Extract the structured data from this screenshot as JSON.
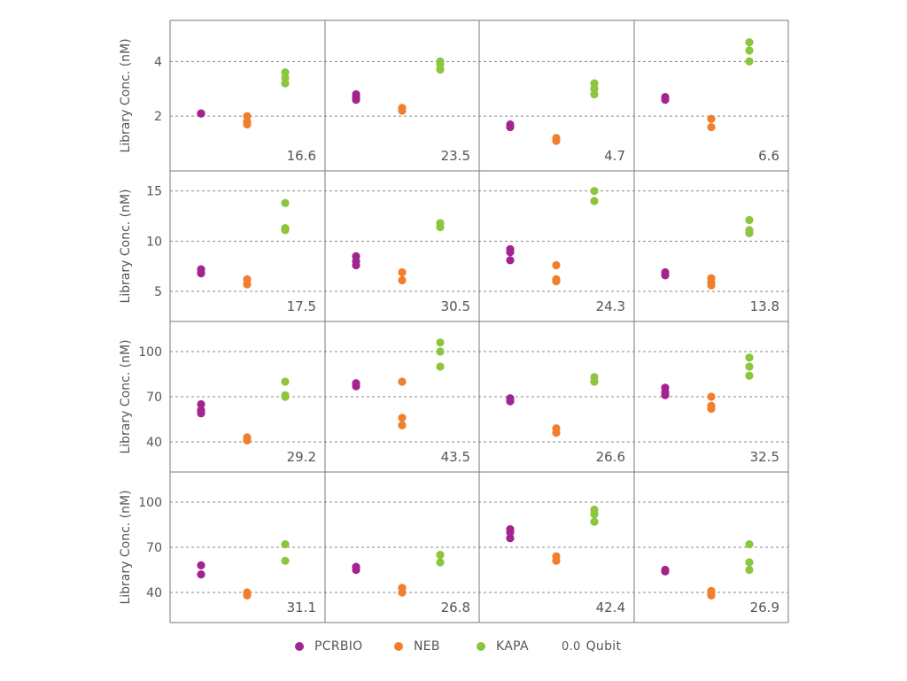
{
  "colors": {
    "PCRBIO": "#a3238f",
    "NEB": "#f07f2d",
    "KAPA": "#8cc63f",
    "gridline": "#8a8a8a",
    "border": "#7a7a7a",
    "text": "#555555"
  },
  "legend": {
    "items": [
      "PCRBIO",
      "NEB",
      "KAPA"
    ],
    "qubit_sample": "0.0",
    "qubit_label": "Qubit"
  },
  "chart_data": {
    "type": "scatter",
    "layout": "4x4 grid of panels, rows share y-axis",
    "ylabel": "Library Conc. (nM)",
    "series_names": [
      "PCRBIO",
      "NEB",
      "KAPA"
    ],
    "grid": "horizontal dashed",
    "legend_position": "bottom",
    "rows": [
      {
        "ylim": [
          0,
          5.5
        ],
        "yticks": [
          2,
          4
        ],
        "panels": [
          {
            "qubit": "16.6",
            "PCRBIO": [
              2.1,
              2.1
            ],
            "NEB": [
              1.7,
              1.8,
              2.0
            ],
            "KAPA": [
              3.2,
              3.4,
              3.6
            ]
          },
          {
            "qubit": "23.5",
            "PCRBIO": [
              2.6,
              2.7,
              2.8
            ],
            "NEB": [
              2.2,
              2.3
            ],
            "KAPA": [
              3.7,
              3.9,
              4.0
            ]
          },
          {
            "qubit": "4.7",
            "PCRBIO": [
              1.6,
              1.7
            ],
            "NEB": [
              1.1,
              1.2
            ],
            "KAPA": [
              2.8,
              3.0,
              3.2
            ]
          },
          {
            "qubit": "6.6",
            "PCRBIO": [
              2.6,
              2.7
            ],
            "NEB": [
              1.6,
              1.9
            ],
            "KAPA": [
              4.0,
              4.4,
              4.7
            ]
          }
        ]
      },
      {
        "ylim": [
          2,
          17
        ],
        "yticks": [
          5,
          10,
          15
        ],
        "panels": [
          {
            "qubit": "17.5",
            "PCRBIO": [
              6.8,
              7.2
            ],
            "NEB": [
              5.7,
              6.2
            ],
            "KAPA": [
              11.1,
              11.3,
              13.8
            ]
          },
          {
            "qubit": "30.5",
            "PCRBIO": [
              7.6,
              8.0,
              8.5
            ],
            "NEB": [
              6.1,
              6.9
            ],
            "KAPA": [
              11.4,
              11.8
            ]
          },
          {
            "qubit": "24.3",
            "PCRBIO": [
              8.1,
              8.9,
              9.2
            ],
            "NEB": [
              6.0,
              6.2,
              7.6
            ],
            "KAPA": [
              14.0,
              15.0
            ]
          },
          {
            "qubit": "13.8",
            "PCRBIO": [
              6.6,
              6.9
            ],
            "NEB": [
              5.6,
              5.9,
              6.3
            ],
            "KAPA": [
              10.8,
              11.1,
              12.1
            ]
          }
        ]
      },
      {
        "ylim": [
          20,
          120
        ],
        "yticks": [
          40,
          70,
          100
        ],
        "panels": [
          {
            "qubit": "29.2",
            "PCRBIO": [
              59,
              61,
              65
            ],
            "NEB": [
              41,
              43
            ],
            "KAPA": [
              70,
              71,
              80
            ]
          },
          {
            "qubit": "43.5",
            "PCRBIO": [
              77,
              79
            ],
            "NEB": [
              51,
              56,
              80
            ],
            "KAPA": [
              90,
              100,
              106
            ]
          },
          {
            "qubit": "26.6",
            "PCRBIO": [
              67,
              69
            ],
            "NEB": [
              46,
              49
            ],
            "KAPA": [
              80,
              83
            ]
          },
          {
            "qubit": "32.5",
            "PCRBIO": [
              71,
              73,
              76
            ],
            "NEB": [
              62,
              64,
              70
            ],
            "KAPA": [
              84,
              90,
              96
            ]
          }
        ]
      },
      {
        "ylim": [
          20,
          120
        ],
        "yticks": [
          40,
          70,
          100
        ],
        "panels": [
          {
            "qubit": "31.1",
            "PCRBIO": [
              52,
              58
            ],
            "NEB": [
              38,
              40
            ],
            "KAPA": [
              61,
              72
            ]
          },
          {
            "qubit": "26.8",
            "PCRBIO": [
              55,
              57
            ],
            "NEB": [
              40,
              43
            ],
            "KAPA": [
              60,
              65
            ]
          },
          {
            "qubit": "42.4",
            "PCRBIO": [
              76,
              80,
              82
            ],
            "NEB": [
              61,
              64
            ],
            "KAPA": [
              87,
              92,
              95
            ]
          },
          {
            "qubit": "26.9",
            "PCRBIO": [
              54,
              55
            ],
            "NEB": [
              38,
              40,
              41
            ],
            "KAPA": [
              55,
              60,
              72
            ]
          }
        ]
      }
    ]
  }
}
